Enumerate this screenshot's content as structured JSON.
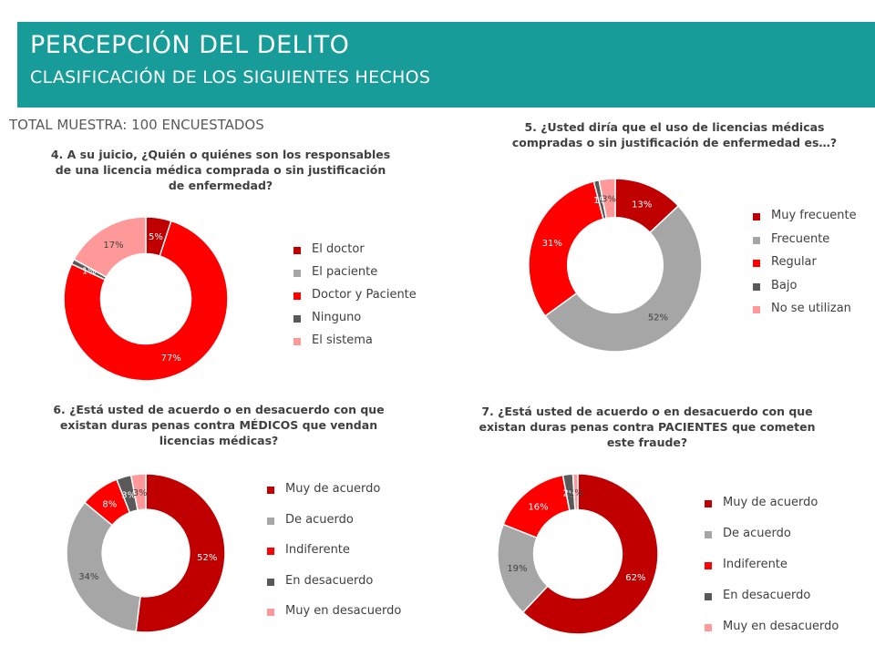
{
  "header": {
    "title": "PERCEPCIÓN DEL DELITO",
    "subtitle": "CLASIFICACIÓN DE LOS SIGUIENTES HECHOS"
  },
  "sample_label": "TOTAL MUESTRA: 100 ENCUESTADOS",
  "colors": {
    "header_bg": "#179c9a",
    "dark_red": "#c00000",
    "gray": "#a6a6a6",
    "red": "#ff0000",
    "dark_gray": "#595959",
    "pink": "#ff9999"
  },
  "chart_data": [
    {
      "type": "pie",
      "title": "4. A su juicio, ¿Quién o quiénes son los responsables de una licencia médica comprada o sin justificación de enfermedad?",
      "categories": [
        "El doctor",
        "El paciente",
        "Doctor y Paciente",
        "Ninguno",
        "El sistema"
      ],
      "values": [
        5,
        0,
        77,
        1,
        17
      ],
      "labels": [
        "5%",
        "0%",
        "77%",
        "1%",
        "17%"
      ],
      "colors": [
        "#c00000",
        "#a6a6a6",
        "#ff0000",
        "#595959",
        "#ff9999"
      ],
      "legend_position": "right"
    },
    {
      "type": "pie",
      "title": "5. ¿Usted diría que el uso de licencias médicas compradas o sin justificación de enfermedad es…?",
      "categories": [
        "Muy frecuente",
        "Frecuente",
        "Regular",
        "Bajo",
        "No se utilizan"
      ],
      "values": [
        13,
        52,
        31,
        1,
        3
      ],
      "labels": [
        "13%",
        "52%",
        "31%",
        "1%",
        "3%"
      ],
      "colors": [
        "#c00000",
        "#a6a6a6",
        "#ff0000",
        "#595959",
        "#ff9999"
      ],
      "legend_position": "right"
    },
    {
      "type": "pie",
      "title": "6. ¿Está usted de acuerdo o en desacuerdo con que existan duras penas contra MÉDICOS que vendan licencias médicas?",
      "categories": [
        "Muy de acuerdo",
        "De acuerdo",
        "Indiferente",
        "En desacuerdo",
        "Muy en desacuerdo"
      ],
      "values": [
        52,
        34,
        8,
        3,
        3
      ],
      "labels": [
        "52%",
        "34%",
        "8%",
        "3%",
        "3%"
      ],
      "colors": [
        "#c00000",
        "#a6a6a6",
        "#ff0000",
        "#595959",
        "#ff9999"
      ],
      "legend_position": "right"
    },
    {
      "type": "pie",
      "title": "7. ¿Está usted de acuerdo o en desacuerdo con que existan duras penas contra PACIENTES que cometen este fraude?",
      "categories": [
        "Muy de acuerdo",
        "De acuerdo",
        "Indiferente",
        "En desacuerdo",
        "Muy en desacuerdo"
      ],
      "values": [
        62,
        19,
        16,
        2,
        1
      ],
      "labels": [
        "62%",
        "19%",
        "16%",
        "2%",
        "1%"
      ],
      "colors": [
        "#c00000",
        "#a6a6a6",
        "#ff0000",
        "#595959",
        "#ff9999"
      ],
      "legend_position": "right"
    }
  ]
}
